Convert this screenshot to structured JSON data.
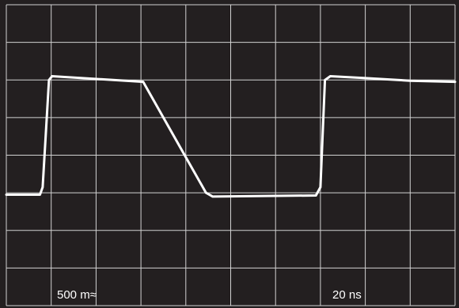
{
  "chart_data": {
    "type": "line",
    "title": "",
    "xlabel": "",
    "ylabel": "",
    "grid": true,
    "grid_divisions": {
      "x": 10,
      "y": 8
    },
    "volts_per_div_label": "500 m≈",
    "time_per_div_label": "20 ns",
    "x_unit": "div",
    "y_unit": "div",
    "xlim": [
      0,
      10
    ],
    "ylim": [
      0,
      8
    ],
    "series": [
      {
        "x": [
          0.0,
          0.75,
          0.81,
          0.95,
          1.02,
          3.05,
          3.95,
          4.45,
          4.6,
          6.9,
          7.0,
          7.1,
          7.22,
          8.0,
          9.0,
          10.0
        ],
        "y": [
          2.95,
          2.95,
          3.15,
          6.0,
          6.1,
          5.95,
          4.05,
          3.0,
          2.9,
          2.93,
          3.15,
          6.0,
          6.1,
          6.05,
          5.98,
          5.95
        ]
      }
    ]
  },
  "colors": {
    "background": "#231f20",
    "grid": "#d2d2d2",
    "trace": "#ffffff",
    "labels": "#ffffff"
  }
}
